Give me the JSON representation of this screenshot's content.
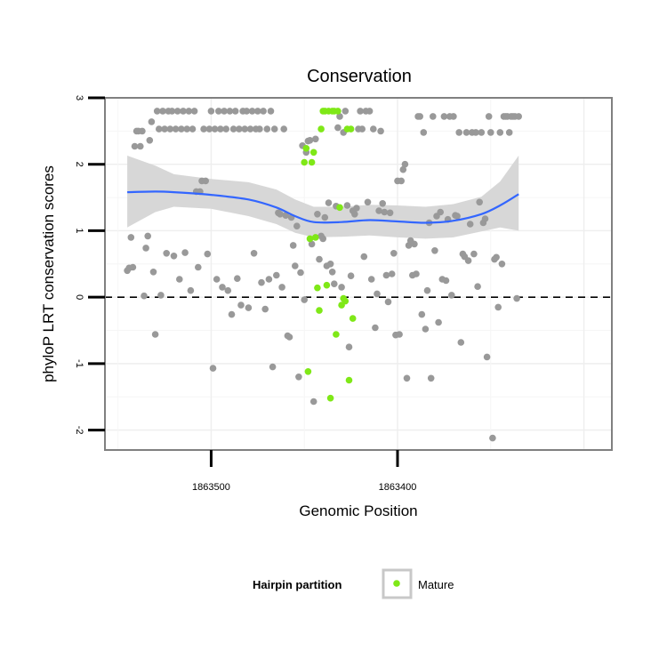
{
  "chart_data": {
    "type": "scatter",
    "title": "Conservation",
    "xlabel": "Genomic Position",
    "ylabel": "phyloP LRT conservation scores",
    "x_reversed": true,
    "xlim": [
      1863557,
      1863285
    ],
    "ylim": [
      -2.3,
      3.0
    ],
    "xticks": [
      {
        "value": 1863500,
        "label": "1863500"
      },
      {
        "value": 1863400,
        "label": "1863400"
      }
    ],
    "yticks": [
      {
        "value": -2,
        "label": "-2"
      },
      {
        "value": -1,
        "label": "-1"
      },
      {
        "value": 0,
        "label": "0"
      },
      {
        "value": 1,
        "label": "1"
      },
      {
        "value": 2,
        "label": "2"
      },
      {
        "value": 3,
        "label": "3"
      }
    ],
    "reference_line": {
      "y": 0,
      "style": "dashed"
    },
    "grid": true,
    "colors": {
      "other": "#999999",
      "mature": "#7FE817",
      "smooth": "#3366FF",
      "band": "#D5D5D5"
    },
    "legend": {
      "title": "Hairpin partition",
      "entries": [
        {
          "label": "Mature",
          "color": "#7FE817"
        }
      ],
      "position": "bottom"
    },
    "series": [
      {
        "name": "",
        "color": "#999999",
        "points": [
          [
            1863545,
            0.4
          ],
          [
            1863544,
            0.44
          ],
          [
            1863543,
            0.9
          ],
          [
            1863542,
            0.45
          ],
          [
            1863541,
            2.27
          ],
          [
            1863540,
            2.5
          ],
          [
            1863539,
            2.5
          ],
          [
            1863538,
            2.27
          ],
          [
            1863537,
            2.5
          ],
          [
            1863536,
            0.02
          ],
          [
            1863535,
            0.74
          ],
          [
            1863534,
            0.92
          ],
          [
            1863533,
            2.36
          ],
          [
            1863532,
            2.64
          ],
          [
            1863531,
            0.38
          ],
          [
            1863530,
            -0.56
          ],
          [
            1863529,
            2.8
          ],
          [
            1863528,
            2.53
          ],
          [
            1863527,
            0.03
          ],
          [
            1863526,
            2.8
          ],
          [
            1863525,
            2.53
          ],
          [
            1863524,
            0.66
          ],
          [
            1863523,
            2.8
          ],
          [
            1863522,
            2.53
          ],
          [
            1863521,
            2.8
          ],
          [
            1863520,
            0.62
          ],
          [
            1863519,
            2.53
          ],
          [
            1863518,
            2.8
          ],
          [
            1863517,
            0.27
          ],
          [
            1863516,
            2.53
          ],
          [
            1863515,
            2.8
          ],
          [
            1863514,
            0.67
          ],
          [
            1863513,
            2.53
          ],
          [
            1863512,
            2.8
          ],
          [
            1863511,
            0.1
          ],
          [
            1863510,
            2.53
          ],
          [
            1863509,
            2.8
          ],
          [
            1863508,
            1.59
          ],
          [
            1863507,
            0.45
          ],
          [
            1863506,
            1.59
          ],
          [
            1863505,
            1.75
          ],
          [
            1863504,
            2.53
          ],
          [
            1863503,
            1.75
          ],
          [
            1863502,
            0.65
          ],
          [
            1863501,
            2.53
          ],
          [
            1863500,
            2.8
          ],
          [
            1863499,
            -1.07
          ],
          [
            1863498,
            2.53
          ],
          [
            1863497,
            0.27
          ],
          [
            1863496,
            2.8
          ],
          [
            1863495,
            2.53
          ],
          [
            1863494,
            0.15
          ],
          [
            1863493,
            2.8
          ],
          [
            1863492,
            2.53
          ],
          [
            1863491,
            0.1
          ],
          [
            1863490,
            2.8
          ],
          [
            1863489,
            -0.26
          ],
          [
            1863488,
            2.53
          ],
          [
            1863487,
            2.8
          ],
          [
            1863486,
            0.28
          ],
          [
            1863485,
            2.53
          ],
          [
            1863484,
            -0.12
          ],
          [
            1863483,
            2.8
          ],
          [
            1863482,
            2.53
          ],
          [
            1863481,
            2.8
          ],
          [
            1863480,
            -0.16
          ],
          [
            1863479,
            2.53
          ],
          [
            1863478,
            2.8
          ],
          [
            1863477,
            0.66
          ],
          [
            1863476,
            2.53
          ],
          [
            1863475,
            2.8
          ],
          [
            1863474,
            2.53
          ],
          [
            1863473,
            0.22
          ],
          [
            1863472,
            2.8
          ],
          [
            1863471,
            -0.18
          ],
          [
            1863470,
            2.53
          ],
          [
            1863469,
            0.27
          ],
          [
            1863468,
            2.8
          ],
          [
            1863467,
            -1.05
          ],
          [
            1863466,
            2.53
          ],
          [
            1863465,
            0.33
          ],
          [
            1863464,
            1.27
          ],
          [
            1863463,
            1.25
          ],
          [
            1863462,
            0.15
          ],
          [
            1863461,
            2.53
          ],
          [
            1863460,
            1.23
          ],
          [
            1863459,
            -0.58
          ],
          [
            1863458,
            -0.6
          ],
          [
            1863457,
            1.2
          ],
          [
            1863456,
            0.78
          ],
          [
            1863455,
            0.47
          ],
          [
            1863454,
            1.07
          ],
          [
            1863453,
            -1.2
          ],
          [
            1863452,
            0.37
          ],
          [
            1863451,
            2.28
          ],
          [
            1863450,
            -0.04
          ],
          [
            1863449,
            2.18
          ],
          [
            1863448,
            2.35
          ],
          [
            1863447,
            2.36
          ],
          [
            1863446,
            0.8
          ],
          [
            1863445,
            -1.57
          ],
          [
            1863444,
            2.38
          ],
          [
            1863443,
            1.25
          ],
          [
            1863442,
            0.57
          ],
          [
            1863441,
            0.92
          ],
          [
            1863440,
            0.88
          ],
          [
            1863439,
            1.2
          ],
          [
            1863438,
            0.47
          ],
          [
            1863437,
            1.42
          ],
          [
            1863436,
            0.5
          ],
          [
            1863435,
            0.38
          ],
          [
            1863434,
            0.2
          ],
          [
            1863433,
            1.37
          ],
          [
            1863432,
            2.55
          ],
          [
            1863431,
            2.72
          ],
          [
            1863430,
            0.15
          ],
          [
            1863429,
            2.48
          ],
          [
            1863428,
            2.8
          ],
          [
            1863427,
            1.38
          ],
          [
            1863426,
            -0.75
          ],
          [
            1863425,
            0.32
          ],
          [
            1863424,
            1.3
          ],
          [
            1863423,
            1.25
          ],
          [
            1863422,
            1.34
          ],
          [
            1863421,
            2.53
          ],
          [
            1863420,
            2.8
          ],
          [
            1863419,
            2.53
          ],
          [
            1863418,
            0.61
          ],
          [
            1863417,
            2.8
          ],
          [
            1863416,
            1.43
          ],
          [
            1863415,
            2.8
          ],
          [
            1863414,
            0.27
          ],
          [
            1863413,
            2.53
          ],
          [
            1863412,
            -0.46
          ],
          [
            1863411,
            0.05
          ],
          [
            1863410,
            1.3
          ],
          [
            1863409,
            2.5
          ],
          [
            1863408,
            1.41
          ],
          [
            1863407,
            1.28
          ],
          [
            1863406,
            0.33
          ],
          [
            1863405,
            -0.07
          ],
          [
            1863404,
            1.27
          ],
          [
            1863403,
            0.35
          ],
          [
            1863402,
            0.66
          ],
          [
            1863401,
            -0.57
          ],
          [
            1863400,
            1.75
          ],
          [
            1863399,
            -0.56
          ],
          [
            1863398,
            1.75
          ],
          [
            1863397,
            1.92
          ],
          [
            1863396,
            2.0
          ],
          [
            1863395,
            -1.22
          ],
          [
            1863394,
            0.78
          ],
          [
            1863393,
            0.85
          ],
          [
            1863392,
            0.33
          ],
          [
            1863391,
            0.8
          ],
          [
            1863390,
            0.35
          ],
          [
            1863389,
            2.72
          ],
          [
            1863388,
            2.72
          ],
          [
            1863387,
            -0.26
          ],
          [
            1863386,
            2.48
          ],
          [
            1863385,
            -0.48
          ],
          [
            1863384,
            0.1
          ],
          [
            1863383,
            1.12
          ],
          [
            1863382,
            -1.22
          ],
          [
            1863381,
            2.72
          ],
          [
            1863380,
            0.7
          ],
          [
            1863379,
            1.22
          ],
          [
            1863378,
            -0.38
          ],
          [
            1863377,
            1.28
          ],
          [
            1863376,
            0.27
          ],
          [
            1863375,
            2.72
          ],
          [
            1863374,
            0.25
          ],
          [
            1863373,
            1.17
          ],
          [
            1863372,
            2.72
          ],
          [
            1863371,
            0.03
          ],
          [
            1863370,
            2.72
          ],
          [
            1863369,
            1.23
          ],
          [
            1863368,
            1.22
          ],
          [
            1863367,
            2.48
          ],
          [
            1863366,
            -0.68
          ],
          [
            1863365,
            0.65
          ],
          [
            1863364,
            0.61
          ],
          [
            1863363,
            2.48
          ],
          [
            1863362,
            0.55
          ],
          [
            1863361,
            1.1
          ],
          [
            1863360,
            2.48
          ],
          [
            1863359,
            0.65
          ],
          [
            1863358,
            2.48
          ],
          [
            1863357,
            0.16
          ],
          [
            1863356,
            1.43
          ],
          [
            1863355,
            2.48
          ],
          [
            1863354,
            1.12
          ],
          [
            1863353,
            1.18
          ],
          [
            1863352,
            -0.9
          ],
          [
            1863351,
            2.72
          ],
          [
            1863350,
            2.48
          ],
          [
            1863349,
            -2.12
          ],
          [
            1863348,
            0.57
          ],
          [
            1863347,
            0.6
          ],
          [
            1863346,
            -0.15
          ],
          [
            1863345,
            2.48
          ],
          [
            1863344,
            0.5
          ],
          [
            1863343,
            2.72
          ],
          [
            1863342,
            2.72
          ],
          [
            1863341,
            2.72
          ],
          [
            1863340,
            2.48
          ],
          [
            1863339,
            2.72
          ],
          [
            1863338,
            2.72
          ],
          [
            1863337,
            2.72
          ],
          [
            1863336,
            -0.02
          ],
          [
            1863335,
            2.72
          ]
        ]
      },
      {
        "name": "Mature",
        "color": "#7FE817",
        "points": [
          [
            1863450,
            2.03
          ],
          [
            1863449,
            2.24
          ],
          [
            1863448,
            -1.12
          ],
          [
            1863447,
            0.88
          ],
          [
            1863446,
            2.03
          ],
          [
            1863445,
            2.18
          ],
          [
            1863444,
            0.9
          ],
          [
            1863443,
            0.14
          ],
          [
            1863442,
            -0.2
          ],
          [
            1863441,
            2.53
          ],
          [
            1863440,
            2.8
          ],
          [
            1863439,
            2.8
          ],
          [
            1863438,
            0.18
          ],
          [
            1863437,
            2.8
          ],
          [
            1863436,
            -1.52
          ],
          [
            1863435,
            2.8
          ],
          [
            1863434,
            2.8
          ],
          [
            1863433,
            -0.56
          ],
          [
            1863432,
            2.8
          ],
          [
            1863431,
            1.35
          ],
          [
            1863430,
            -0.12
          ],
          [
            1863429,
            -0.02
          ],
          [
            1863428,
            -0.06
          ],
          [
            1863427,
            2.53
          ],
          [
            1863426,
            -1.25
          ],
          [
            1863425,
            2.53
          ],
          [
            1863424,
            -0.32
          ]
        ]
      }
    ],
    "smooth": {
      "method": "loess",
      "line": [
        [
          1863545,
          1.58
        ],
        [
          1863530,
          1.59
        ],
        [
          1863520,
          1.58
        ],
        [
          1863500,
          1.54
        ],
        [
          1863480,
          1.47
        ],
        [
          1863465,
          1.35
        ],
        [
          1863455,
          1.22
        ],
        [
          1863445,
          1.13
        ],
        [
          1863430,
          1.13
        ],
        [
          1863415,
          1.16
        ],
        [
          1863400,
          1.14
        ],
        [
          1863385,
          1.12
        ],
        [
          1863370,
          1.15
        ],
        [
          1863355,
          1.25
        ],
        [
          1863345,
          1.38
        ],
        [
          1863335,
          1.55
        ]
      ],
      "band": [
        [
          1863545,
          1.05,
          2.13
        ],
        [
          1863530,
          1.28,
          1.98
        ],
        [
          1863520,
          1.36,
          1.85
        ],
        [
          1863500,
          1.33,
          1.78
        ],
        [
          1863480,
          1.22,
          1.73
        ],
        [
          1863465,
          1.1,
          1.62
        ],
        [
          1863455,
          0.97,
          1.47
        ],
        [
          1863445,
          0.9,
          1.36
        ],
        [
          1863430,
          0.91,
          1.36
        ],
        [
          1863415,
          0.93,
          1.39
        ],
        [
          1863400,
          0.9,
          1.38
        ],
        [
          1863385,
          0.88,
          1.36
        ],
        [
          1863370,
          0.9,
          1.4
        ],
        [
          1863355,
          0.99,
          1.51
        ],
        [
          1863345,
          1.05,
          1.74
        ],
        [
          1863335,
          1.0,
          2.13
        ]
      ]
    }
  }
}
